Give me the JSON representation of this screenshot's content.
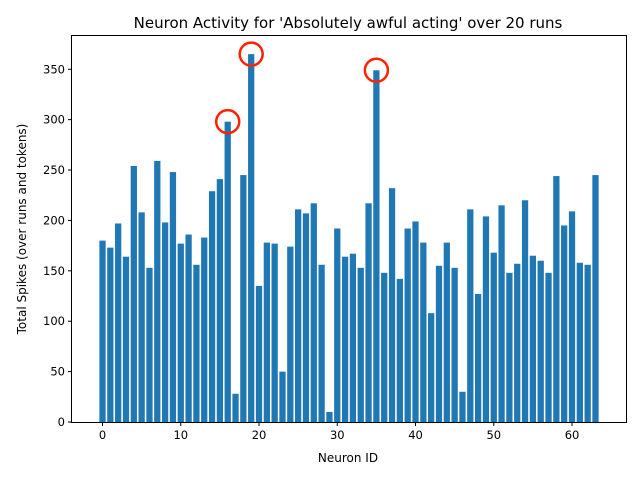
{
  "chart_data": {
    "type": "bar",
    "title": "Neuron Activity for 'Absolutely awful acting' over 20 runs",
    "xlabel": "Neuron ID",
    "ylabel": "Total Spikes (over runs and tokens)",
    "xlim": [
      -3.9,
      66.9
    ],
    "ylim": [
      0,
      383
    ],
    "xticks": [
      0,
      10,
      20,
      30,
      40,
      50,
      60
    ],
    "yticks": [
      0,
      50,
      100,
      150,
      200,
      250,
      300,
      350
    ],
    "grid": false,
    "bar_color": "#1f77b4",
    "highlight_color": "#ff2200",
    "highlighted_neurons": [
      16,
      19,
      35
    ],
    "x": [
      0,
      1,
      2,
      3,
      4,
      5,
      6,
      7,
      8,
      9,
      10,
      11,
      12,
      13,
      14,
      15,
      16,
      17,
      18,
      19,
      20,
      21,
      22,
      23,
      24,
      25,
      26,
      27,
      28,
      29,
      30,
      31,
      32,
      33,
      34,
      35,
      36,
      37,
      38,
      39,
      40,
      41,
      42,
      43,
      44,
      45,
      46,
      47,
      48,
      49,
      50,
      51,
      52,
      53,
      54,
      55,
      56,
      57,
      58,
      59,
      60,
      61,
      62,
      63
    ],
    "values": [
      180,
      173,
      197,
      164,
      254,
      208,
      153,
      259,
      198,
      248,
      177,
      186,
      156,
      183,
      229,
      241,
      298,
      28,
      245,
      365,
      135,
      178,
      177,
      50,
      174,
      211,
      207,
      217,
      156,
      10,
      192,
      164,
      167,
      153,
      217,
      349,
      148,
      232,
      142,
      192,
      199,
      178,
      108,
      155,
      178,
      153,
      30,
      211,
      127,
      204,
      168,
      215,
      148,
      157,
      220,
      165,
      160,
      148,
      244,
      195,
      209,
      158,
      156,
      245
    ]
  }
}
